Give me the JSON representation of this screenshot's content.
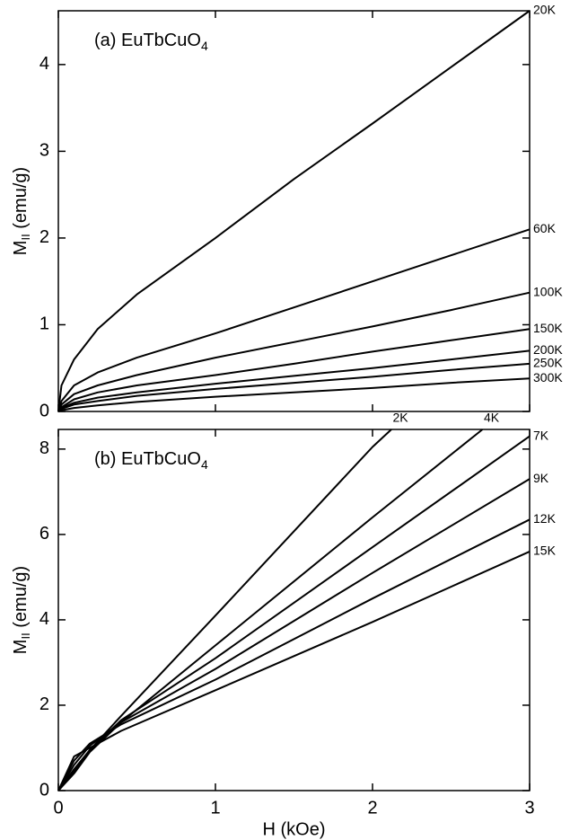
{
  "chart_data": [
    {
      "type": "line",
      "title": [
        "(a) EuTbCuO",
        "4"
      ],
      "ylabel": [
        "M",
        "II",
        " (emu/g)"
      ],
      "color": "#000000",
      "x": [
        0,
        0.02,
        0.1,
        0.25,
        0.5,
        1,
        1.5,
        2,
        2.5,
        3
      ],
      "xlim": [
        0,
        3
      ],
      "ylim": [
        0,
        4.62
      ],
      "yticks": [
        0,
        1,
        2,
        3,
        4
      ],
      "series": [
        {
          "name": "20K",
          "values": [
            0,
            0.3,
            0.6,
            0.95,
            1.35,
            2.0,
            2.68,
            3.32,
            3.97,
            4.62
          ]
        },
        {
          "name": "60K",
          "values": [
            0,
            0.12,
            0.3,
            0.45,
            0.62,
            0.9,
            1.2,
            1.5,
            1.8,
            2.1
          ]
        },
        {
          "name": "100K",
          "values": [
            0,
            0.08,
            0.2,
            0.3,
            0.42,
            0.62,
            0.8,
            0.98,
            1.17,
            1.37
          ]
        },
        {
          "name": "150K",
          "values": [
            0,
            0.05,
            0.14,
            0.22,
            0.3,
            0.42,
            0.55,
            0.69,
            0.82,
            0.95
          ]
        },
        {
          "name": "200K",
          "values": [
            0,
            0.04,
            0.1,
            0.16,
            0.22,
            0.32,
            0.41,
            0.5,
            0.6,
            0.7
          ]
        },
        {
          "name": "250K",
          "values": [
            0,
            0.03,
            0.08,
            0.12,
            0.18,
            0.26,
            0.33,
            0.4,
            0.48,
            0.55
          ]
        },
        {
          "name": "300K",
          "values": [
            0,
            0.015,
            0.04,
            0.07,
            0.11,
            0.17,
            0.22,
            0.27,
            0.33,
            0.38
          ]
        }
      ]
    },
    {
      "type": "line",
      "title": [
        "(b) EuTbCuO",
        "4"
      ],
      "ylabel": [
        "M",
        "II",
        " (emu/g)"
      ],
      "xlabel": "H (kOe)",
      "color": "#000000",
      "xlim": [
        0,
        3
      ],
      "xticks": [
        0,
        1,
        2,
        3
      ],
      "ylim": [
        0,
        8.46
      ],
      "yticks": [
        0,
        2,
        4,
        6,
        8
      ],
      "series": [
        {
          "name": "2K",
          "x": [
            0,
            0.1,
            0.2,
            0.4,
            1,
            2,
            2.12
          ],
          "values": [
            0,
            0.45,
            0.95,
            1.75,
            4.1,
            8.05,
            8.46
          ]
        },
        {
          "name": "4K",
          "x": [
            0,
            0.1,
            0.2,
            0.4,
            1,
            2,
            2.7
          ],
          "values": [
            0,
            0.4,
            0.9,
            1.6,
            3.4,
            6.4,
            8.46
          ]
        },
        {
          "name": "7K",
          "x": [
            0,
            0.1,
            0.2,
            0.4,
            1,
            2,
            3
          ],
          "values": [
            0,
            0.5,
            0.95,
            1.65,
            3.1,
            5.7,
            8.3
          ]
        },
        {
          "name": "9K",
          "x": [
            0,
            0.1,
            0.2,
            0.4,
            1,
            2,
            3
          ],
          "values": [
            0,
            0.6,
            1.05,
            1.6,
            2.85,
            5.1,
            7.3
          ]
        },
        {
          "name": "12K",
          "x": [
            0,
            0.1,
            0.2,
            0.4,
            1,
            2,
            3
          ],
          "values": [
            0,
            0.7,
            1.1,
            1.55,
            2.6,
            4.5,
            6.35
          ]
        },
        {
          "name": "15K",
          "x": [
            0,
            0.1,
            0.2,
            0.4,
            1,
            2,
            3
          ],
          "values": [
            0,
            0.8,
            1.0,
            1.4,
            2.35,
            3.95,
            5.6
          ]
        }
      ]
    }
  ]
}
